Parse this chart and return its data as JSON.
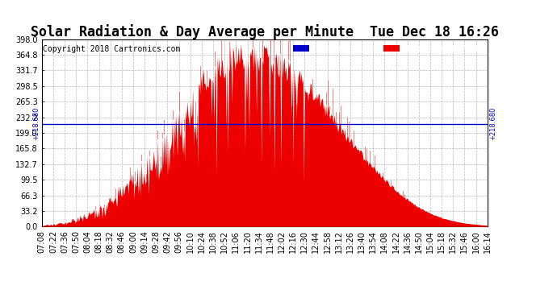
{
  "title": "Solar Radiation & Day Average per Minute  Tue Dec 18 16:26",
  "copyright": "Copyright 2018 Cartronics.com",
  "median_value": 218.68,
  "ymax": 398.0,
  "yticks": [
    0.0,
    33.2,
    66.3,
    99.5,
    132.7,
    165.8,
    199.0,
    232.2,
    265.3,
    298.5,
    331.7,
    364.8,
    398.0
  ],
  "bg_color": "#ffffff",
  "plot_bg_color": "#ffffff",
  "grid_color": "#888888",
  "fill_color": "#ee0000",
  "line_color": "#ee0000",
  "median_line_color": "#0000cc",
  "legend_median_bg": "#0000cc",
  "legend_radiation_bg": "#ee0000",
  "xtick_labels": [
    "07:08",
    "07:22",
    "07:36",
    "07:50",
    "08:04",
    "08:18",
    "08:32",
    "08:46",
    "09:00",
    "09:14",
    "09:28",
    "09:42",
    "09:56",
    "10:10",
    "10:24",
    "10:38",
    "10:52",
    "11:06",
    "11:20",
    "11:34",
    "11:48",
    "12:02",
    "12:16",
    "12:30",
    "12:44",
    "12:58",
    "13:12",
    "13:26",
    "13:40",
    "13:54",
    "14:08",
    "14:22",
    "14:36",
    "14:50",
    "15:04",
    "15:18",
    "15:32",
    "15:46",
    "16:00",
    "16:14"
  ],
  "title_fontsize": 12,
  "copyright_fontsize": 7,
  "tick_fontsize": 7,
  "legend_fontsize": 7
}
